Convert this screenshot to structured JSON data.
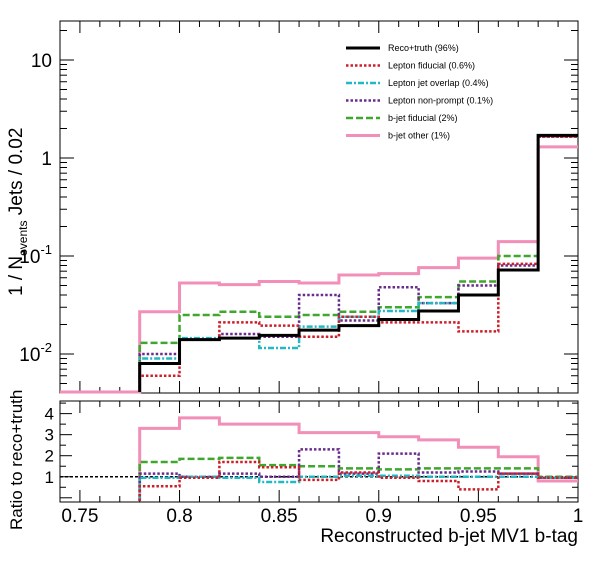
{
  "chart_data": [
    {
      "type": "line",
      "panel": "main",
      "ylabel": "1 / N",
      "ylabel_sub": "events",
      "ylabel_suffix": " Jets / 0.02",
      "yscale": "log",
      "xlim": [
        0.74,
        1.0
      ],
      "ylim": [
        0.004,
        25
      ],
      "yticks": [
        {
          "value": 0.01,
          "base": "10",
          "exp": "-2"
        },
        {
          "value": 0.1,
          "base": "10",
          "exp": "-1"
        },
        {
          "value": 1,
          "base": "1",
          "exp": ""
        },
        {
          "value": 10,
          "base": "10",
          "exp": ""
        }
      ],
      "bin_edges": [
        0.78,
        0.8,
        0.82,
        0.84,
        0.86,
        0.88,
        0.9,
        0.92,
        0.94,
        0.96,
        0.98,
        1.0
      ],
      "series": [
        {
          "name": "Reco+truth (96%)",
          "color": "#000000",
          "dash": "solid",
          "values": [
            0.008,
            0.014,
            0.0145,
            0.0155,
            0.0175,
            0.0195,
            0.0225,
            0.0275,
            0.04,
            0.072,
            1.7
          ]
        },
        {
          "name": "Lepton fiducial (0.6%)",
          "color": "#cc1f2a",
          "dash": "dot",
          "values": [
            0.006,
            0.014,
            0.021,
            0.0195,
            0.015,
            0.024,
            0.021,
            0.021,
            0.017,
            0.083,
            1.65
          ]
        },
        {
          "name": "Lepton jet overlap (0.4%)",
          "color": "#22b8c4",
          "dash": "dashdot",
          "values": [
            0.009,
            0.0145,
            0.0145,
            0.0115,
            0.019,
            0.024,
            0.0275,
            0.033,
            0.04,
            0.072,
            1.7
          ]
        },
        {
          "name": "Lepton non-prompt (0.1%)",
          "color": "#6a2c8c",
          "dash": "dot",
          "values": [
            0.01,
            0.014,
            0.016,
            0.015,
            0.04,
            0.022,
            0.048,
            0.033,
            0.05,
            0.08,
            1.65
          ]
        },
        {
          "name": "b-jet fiducial (2%)",
          "color": "#3fa62e",
          "dash": "dash",
          "values": [
            0.013,
            0.025,
            0.027,
            0.024,
            0.025,
            0.027,
            0.03,
            0.038,
            0.055,
            0.1,
            1.7
          ]
        },
        {
          "name": "b-jet other (1%)",
          "color": "#f28fb8",
          "dash": "solid",
          "values": [
            0.027,
            0.053,
            0.051,
            0.055,
            0.053,
            0.064,
            0.066,
            0.076,
            0.095,
            0.14,
            1.3
          ]
        }
      ],
      "legend_position": "top-right"
    },
    {
      "type": "line",
      "panel": "ratio",
      "xlabel": "Reconstructed b-jet MV1 b-tag",
      "ylabel": "Ratio to reco+truth",
      "xlim": [
        0.74,
        1.0
      ],
      "ylim": [
        -0.2,
        4.6
      ],
      "xticks": [
        "0.75",
        "0.8",
        "0.85",
        "0.9",
        "0.95",
        "1"
      ],
      "xtick_values": [
        0.75,
        0.8,
        0.85,
        0.9,
        0.95,
        1.0
      ],
      "yticks": [
        "1",
        "2",
        "3",
        "4"
      ],
      "ytick_values": [
        1,
        2,
        3,
        4
      ],
      "reference_line": 1,
      "bin_edges": [
        0.78,
        0.8,
        0.82,
        0.84,
        0.86,
        0.88,
        0.9,
        0.92,
        0.94,
        0.96,
        0.98,
        1.0
      ],
      "series": [
        {
          "name": "Lepton fiducial (0.6%)",
          "color": "#cc1f2a",
          "dash": "dot",
          "values": [
            0.55,
            0.95,
            1.7,
            1.45,
            0.85,
            1.2,
            0.95,
            0.8,
            0.4,
            1.15,
            0.95
          ]
        },
        {
          "name": "Lepton jet overlap (0.4%)",
          "color": "#22b8c4",
          "dash": "dashdot",
          "values": [
            0.95,
            1.0,
            0.95,
            0.75,
            1.0,
            1.05,
            1.05,
            1.0,
            1.0,
            1.0,
            0.95
          ]
        },
        {
          "name": "Lepton non-prompt (0.1%)",
          "color": "#6a2c8c",
          "dash": "dot",
          "values": [
            1.15,
            1.0,
            1.15,
            1.0,
            2.3,
            1.15,
            2.1,
            1.2,
            1.25,
            1.15,
            0.95
          ]
        },
        {
          "name": "b-jet fiducial (2%)",
          "color": "#3fa62e",
          "dash": "dash",
          "values": [
            1.7,
            1.85,
            1.9,
            1.55,
            1.5,
            1.4,
            1.35,
            1.4,
            1.4,
            1.4,
            1.0
          ]
        },
        {
          "name": "b-jet other (1%)",
          "color": "#f28fb8",
          "dash": "solid",
          "values": [
            3.3,
            3.8,
            3.5,
            3.5,
            3.1,
            3.1,
            2.9,
            2.75,
            2.4,
            1.95,
            0.8
          ]
        }
      ]
    }
  ]
}
